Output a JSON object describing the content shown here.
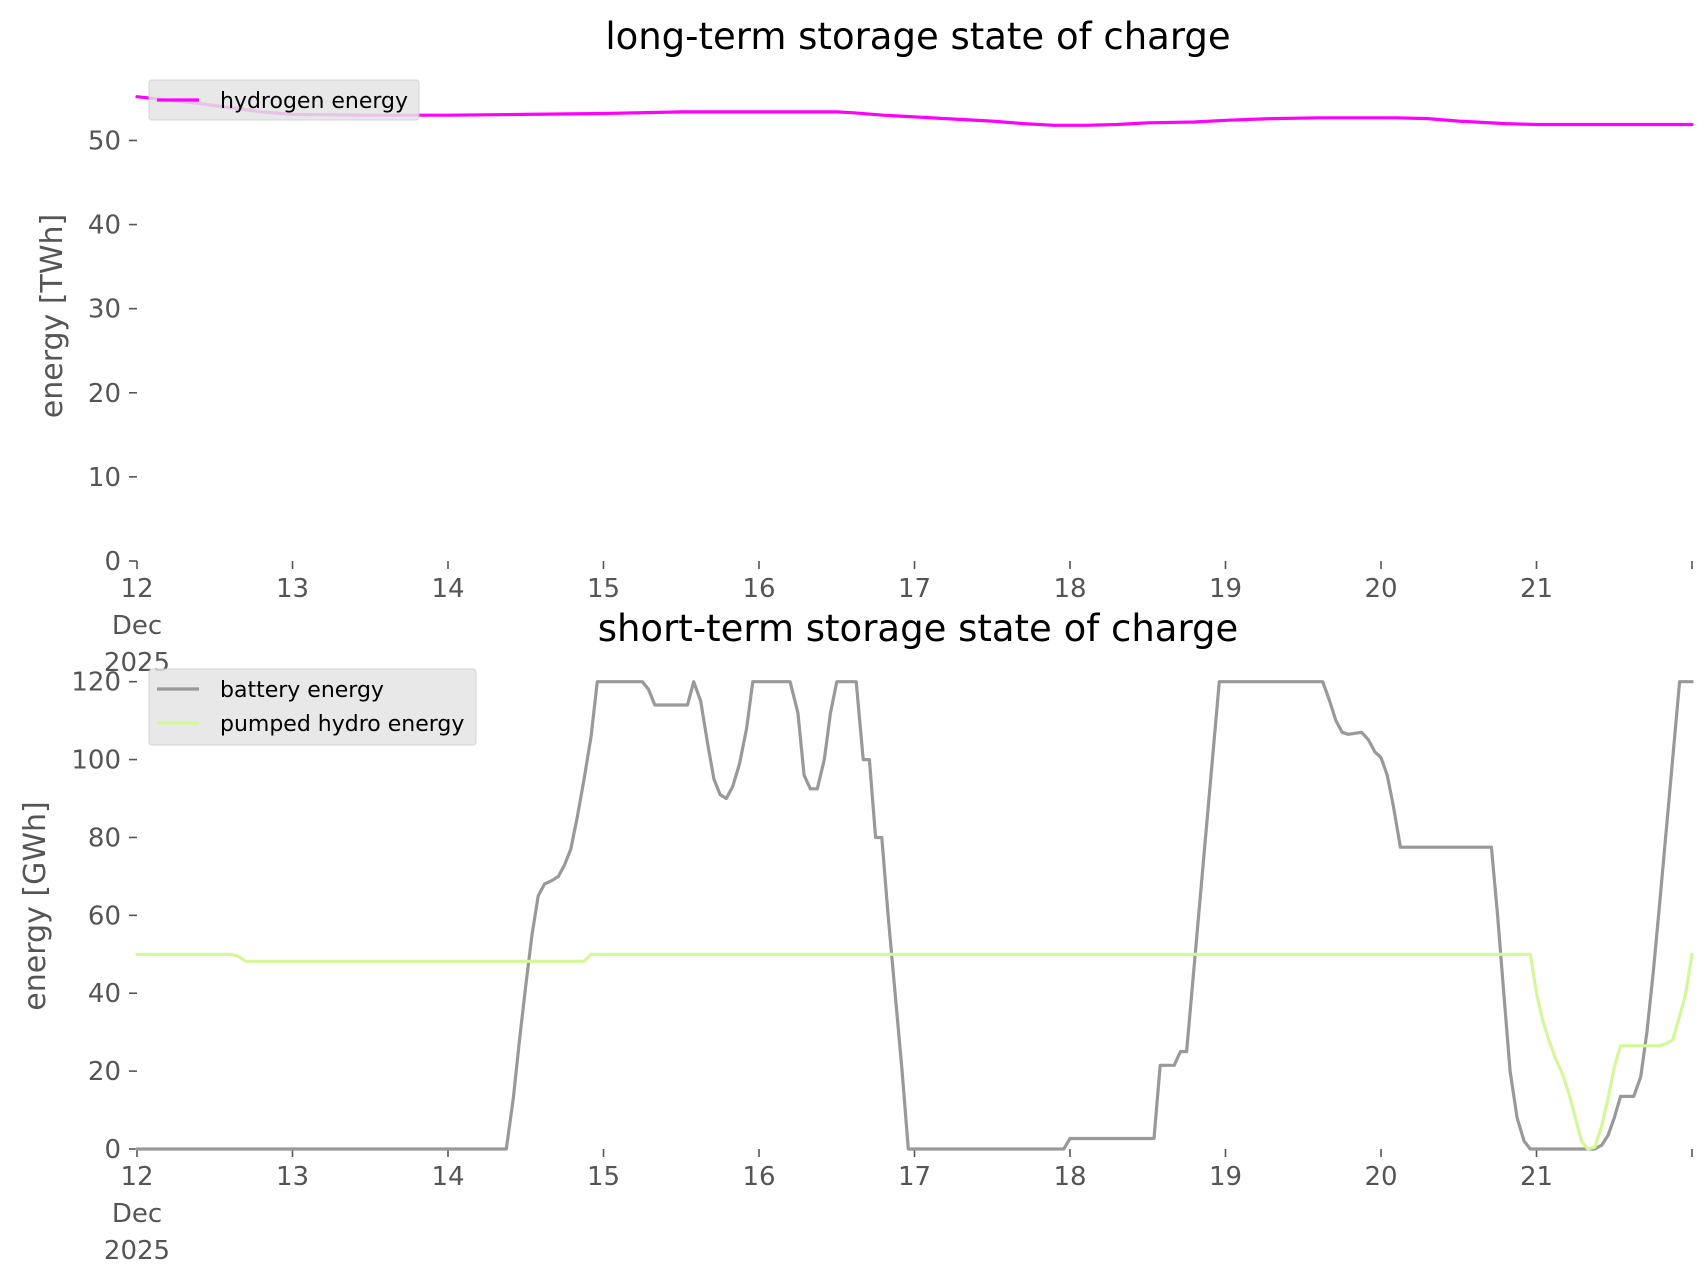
{
  "chart_data": [
    {
      "type": "line",
      "title": "long-term storage state of charge",
      "ylabel": "energy [TWh]",
      "xlabel": "",
      "xlim": [
        12.0,
        22.0
      ],
      "ylim": [
        0,
        56
      ],
      "yticks": [
        0,
        10,
        20,
        30,
        40,
        50
      ],
      "xticks": [
        {
          "value": 12,
          "lines": [
            "12",
            "Dec",
            "2025"
          ]
        },
        {
          "value": 13,
          "lines": [
            "13"
          ]
        },
        {
          "value": 14,
          "lines": [
            "14"
          ]
        },
        {
          "value": 15,
          "lines": [
            "15"
          ]
        },
        {
          "value": 16,
          "lines": [
            "16"
          ]
        },
        {
          "value": 17,
          "lines": [
            "17"
          ]
        },
        {
          "value": 18,
          "lines": [
            "18"
          ]
        },
        {
          "value": 19,
          "lines": [
            "19"
          ]
        },
        {
          "value": 20,
          "lines": [
            "20"
          ]
        },
        {
          "value": 21,
          "lines": [
            "21"
          ]
        }
      ],
      "grid": false,
      "legend_position": "top-left",
      "series": [
        {
          "name": "hydrogen energy",
          "color": "#ff00ff",
          "x": [
            12.0,
            12.4,
            12.8,
            13.0,
            13.5,
            14.0,
            14.5,
            15.0,
            15.5,
            16.0,
            16.5,
            16.6,
            16.8,
            17.0,
            17.2,
            17.5,
            17.7,
            17.9,
            18.1,
            18.3,
            18.5,
            18.8,
            19.0,
            19.3,
            19.6,
            19.9,
            20.1,
            20.3,
            20.5,
            20.8,
            21.0,
            21.5,
            22.0
          ],
          "y": [
            55.2,
            54.4,
            53.4,
            53.1,
            53.0,
            53.0,
            53.1,
            53.2,
            53.4,
            53.4,
            53.4,
            53.3,
            53.0,
            52.8,
            52.6,
            52.3,
            52.0,
            51.8,
            51.8,
            51.9,
            52.1,
            52.2,
            52.4,
            52.6,
            52.7,
            52.7,
            52.7,
            52.6,
            52.3,
            52.0,
            51.9,
            51.9,
            51.9
          ]
        }
      ]
    },
    {
      "type": "line",
      "title": "short-term storage state of charge",
      "ylabel": "energy [GWh]",
      "xlabel": "",
      "xlim": [
        12.0,
        22.0
      ],
      "ylim": [
        0,
        123
      ],
      "yticks": [
        0,
        20,
        40,
        60,
        80,
        100,
        120
      ],
      "xticks": [
        {
          "value": 12,
          "lines": [
            "12",
            "Dec",
            "2025"
          ]
        },
        {
          "value": 13,
          "lines": [
            "13"
          ]
        },
        {
          "value": 14,
          "lines": [
            "14"
          ]
        },
        {
          "value": 15,
          "lines": [
            "15"
          ]
        },
        {
          "value": 16,
          "lines": [
            "16"
          ]
        },
        {
          "value": 17,
          "lines": [
            "17"
          ]
        },
        {
          "value": 18,
          "lines": [
            "18"
          ]
        },
        {
          "value": 19,
          "lines": [
            "19"
          ]
        },
        {
          "value": 20,
          "lines": [
            "20"
          ]
        },
        {
          "value": 21,
          "lines": [
            "21"
          ]
        }
      ],
      "grid": false,
      "legend_position": "top-left",
      "series": [
        {
          "name": "battery energy",
          "color": "#999999",
          "x": [
            12.0,
            14.375,
            14.42,
            14.46,
            14.5,
            14.54,
            14.58,
            14.62,
            14.67,
            14.71,
            14.75,
            14.79,
            14.83,
            14.875,
            14.92,
            14.96,
            15.0,
            15.25,
            15.29,
            15.33,
            15.54,
            15.58,
            15.625,
            15.67,
            15.71,
            15.75,
            15.79,
            15.83,
            15.875,
            15.92,
            15.96,
            16.0,
            16.2,
            16.25,
            16.29,
            16.33,
            16.375,
            16.42,
            16.46,
            16.5,
            16.625,
            16.67,
            16.71,
            16.75,
            16.79,
            16.83,
            16.875,
            16.92,
            16.96,
            17.96,
            18.0,
            18.54,
            18.58,
            18.67,
            18.71,
            18.75,
            18.96,
            19.625,
            19.67,
            19.71,
            19.75,
            19.79,
            19.875,
            19.92,
            19.96,
            20.0,
            20.04,
            20.08,
            20.125,
            20.17,
            20.71,
            20.75,
            20.79,
            20.83,
            20.875,
            20.92,
            20.96,
            21.375,
            21.42,
            21.46,
            21.5,
            21.54,
            21.58,
            21.625,
            21.67,
            21.71,
            21.75,
            21.79,
            21.83,
            21.875,
            21.92,
            21.96,
            22.0
          ],
          "y": [
            0,
            0,
            13,
            28,
            42,
            55,
            65,
            68,
            69,
            70,
            73,
            77,
            85,
            95,
            106,
            120,
            120,
            120,
            118,
            114,
            114,
            120,
            115,
            104,
            95,
            91,
            90,
            93,
            99,
            108,
            120,
            120,
            120,
            112,
            96,
            92.5,
            92.5,
            100,
            112,
            120,
            120,
            100,
            100,
            80,
            80,
            60,
            40,
            20,
            0,
            0,
            2.7,
            2.7,
            21.5,
            21.5,
            25,
            25,
            120,
            120,
            115,
            110,
            107,
            106.5,
            107,
            105,
            102,
            100.5,
            96,
            88,
            77.5,
            77.5,
            77.5,
            60,
            40,
            20,
            8,
            2,
            0,
            0,
            1,
            3.5,
            8,
            13.5,
            13.5,
            13.5,
            18.5,
            30,
            45,
            62,
            80,
            100,
            120,
            120,
            120
          ]
        },
        {
          "name": "pumped hydro energy",
          "color": "#d4f79a",
          "x": [
            12.0,
            12.6,
            12.65,
            12.7,
            14.875,
            14.92,
            14.96,
            20.96,
            21.0,
            21.04,
            21.08,
            21.125,
            21.17,
            21.21,
            21.25,
            21.29,
            21.33,
            21.375,
            21.42,
            21.46,
            21.5,
            21.54,
            21.58,
            21.625,
            21.67,
            21.71,
            21.75,
            21.79,
            21.83,
            21.875,
            21.92,
            21.96,
            22.0
          ],
          "y": [
            50,
            50,
            49.5,
            48.2,
            48.2,
            50,
            50,
            50,
            40,
            33,
            28,
            23,
            19,
            14,
            8,
            2,
            0,
            0.5,
            6,
            13,
            21,
            26.5,
            26.5,
            26.5,
            26.5,
            26.5,
            26.5,
            26.5,
            27,
            28,
            34,
            40,
            50
          ]
        }
      ]
    }
  ]
}
